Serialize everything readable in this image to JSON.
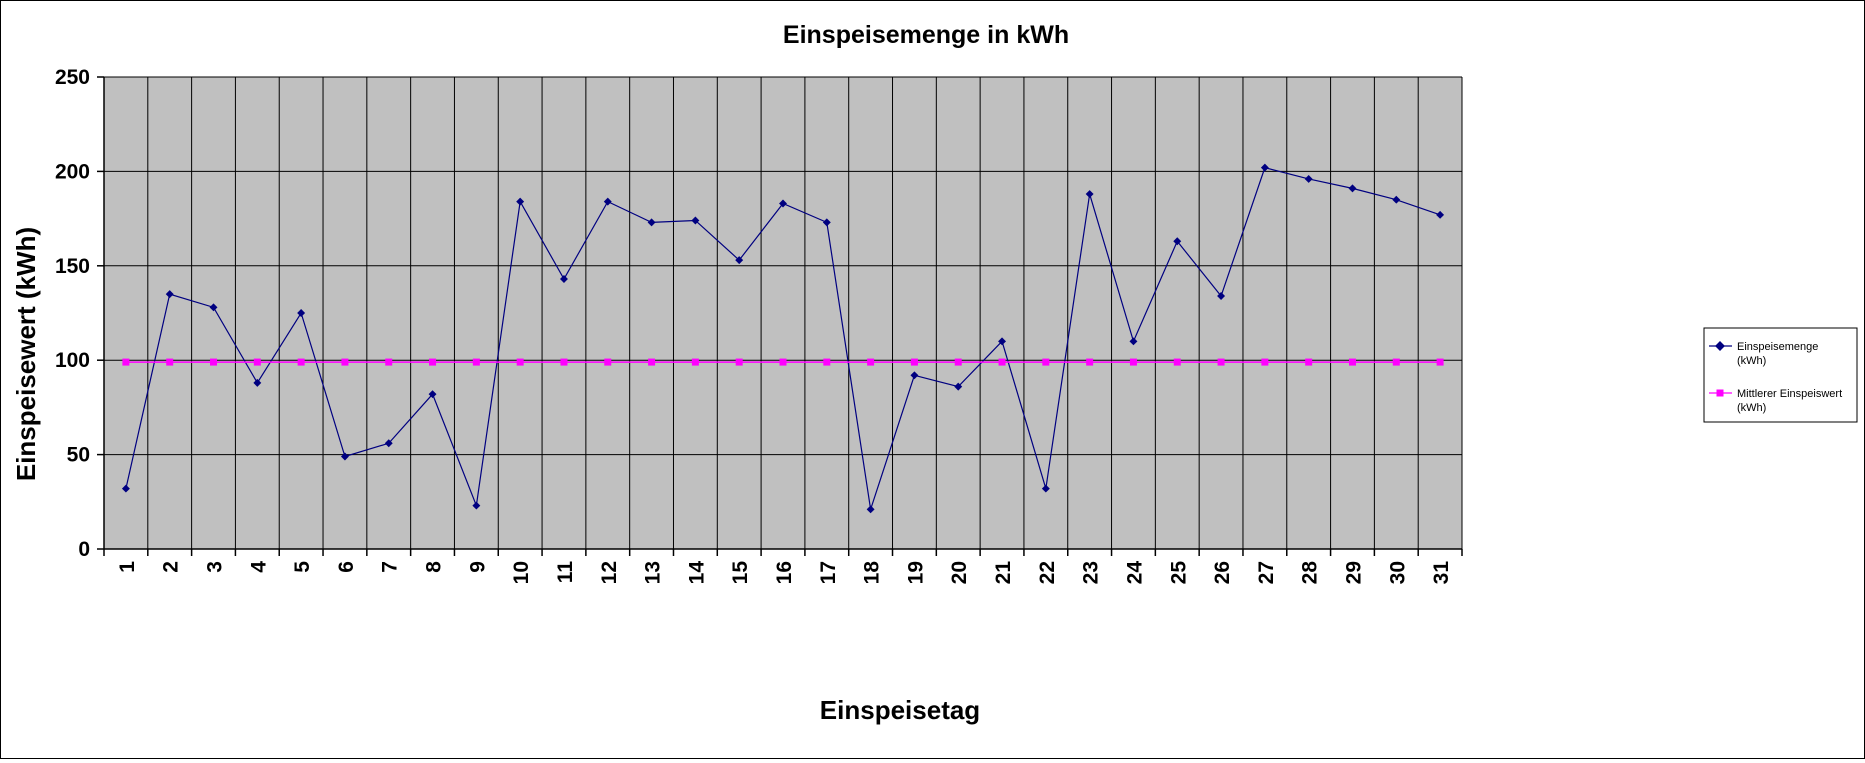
{
  "chart_data": {
    "type": "line",
    "title": "Einspeisemenge in kWh",
    "xlabel": "Einspeisetag",
    "ylabel": "Einspeisewert  (kWh)",
    "ylim": [
      0,
      250
    ],
    "yticks": [
      "0",
      "50",
      "100",
      "150",
      "200",
      "250"
    ],
    "grid": true,
    "legend_position": "right",
    "categories": [
      "1",
      "2",
      "3",
      "4",
      "5",
      "6",
      "7",
      "8",
      "9",
      "10",
      "11",
      "12",
      "13",
      "14",
      "15",
      "16",
      "17",
      "18",
      "19",
      "20",
      "21",
      "22",
      "23",
      "24",
      "25",
      "26",
      "27",
      "28",
      "29",
      "30",
      "31"
    ],
    "series": [
      {
        "legend_line1": "Einspeisemenge",
        "legend_line2": "(kWh)",
        "color": "#000080",
        "marker": "diamond",
        "values": [
          32,
          135,
          128,
          88,
          125,
          49,
          56,
          82,
          23,
          184,
          143,
          184,
          173,
          174,
          153,
          183,
          173,
          21,
          92,
          86,
          110,
          32,
          188,
          110,
          163,
          134,
          202,
          196,
          191,
          185,
          177
        ]
      },
      {
        "legend_line1": "Mittlerer Einspeiswert",
        "legend_line2": "(kWh)",
        "color": "#ff00ff",
        "marker": "square",
        "values": [
          99,
          99,
          99,
          99,
          99,
          99,
          99,
          99,
          99,
          99,
          99,
          99,
          99,
          99,
          99,
          99,
          99,
          99,
          99,
          99,
          99,
          99,
          99,
          99,
          99,
          99,
          99,
          99,
          99,
          99,
          99
        ]
      }
    ],
    "plot_background": "#c0c0c0",
    "grid_color": "#000000"
  }
}
